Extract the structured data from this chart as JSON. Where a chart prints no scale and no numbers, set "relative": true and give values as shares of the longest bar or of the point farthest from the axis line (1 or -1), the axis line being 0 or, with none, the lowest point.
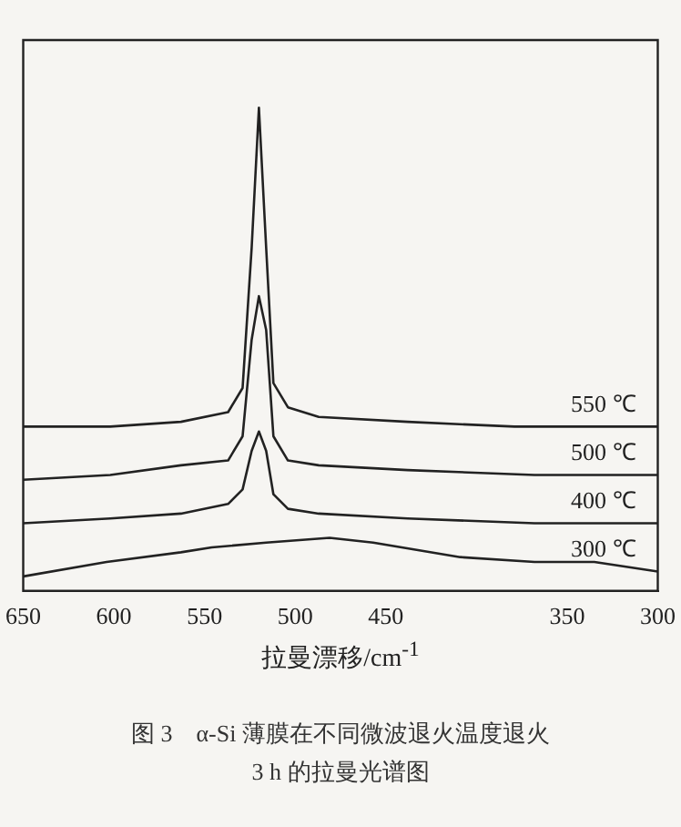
{
  "chart_data": {
    "type": "line",
    "relative": true,
    "xlabel": "拉曼漂移/cm$^{-1}$",
    "annotations": [
      "图 3　α-Si 薄膜在不同微波退火温度退火",
      "3 h 的拉曼光谱图"
    ],
    "xlim": [
      650,
      300
    ],
    "xticks": [
      650,
      600,
      550,
      500,
      450,
      350,
      300
    ],
    "tick_labels": "x",
    "grid": false,
    "legend": false,
    "marker": "none",
    "line_style": "solid",
    "series": [
      {
        "name": "550 ℃",
        "color": "#222222",
        "x": [
          650,
          602,
          563,
          537,
          529,
          524,
          520,
          516,
          512,
          504,
          487,
          438,
          379,
          300
        ],
        "values": [
          0.34,
          0.34,
          0.35,
          0.37,
          0.42,
          0.71,
          1,
          0.71,
          0.43,
          0.38,
          0.36,
          0.35,
          0.34,
          0.34
        ]
      },
      {
        "name": "500 ℃",
        "color": "#222222",
        "x": [
          650,
          602,
          563,
          537,
          529,
          524,
          520,
          516,
          512,
          504,
          487,
          438,
          368,
          300
        ],
        "values": [
          0.23,
          0.24,
          0.26,
          0.27,
          0.32,
          0.52,
          0.61,
          0.54,
          0.32,
          0.27,
          0.26,
          0.25,
          0.24,
          0.24
        ]
      },
      {
        "name": "400 ℃",
        "color": "#222222",
        "x": [
          650,
          602,
          563,
          537,
          529,
          524,
          520,
          516,
          512,
          504,
          487,
          438,
          368,
          300
        ],
        "values": [
          0.14,
          0.15,
          0.16,
          0.18,
          0.21,
          0.29,
          0.33,
          0.29,
          0.2,
          0.17,
          0.16,
          0.15,
          0.14,
          0.14
        ]
      },
      {
        "name": "300 ℃",
        "color": "#222222",
        "x": [
          650,
          604,
          563,
          546,
          516,
          481,
          457,
          409,
          368,
          335,
          300
        ],
        "values": [
          0.03,
          0.06,
          0.08,
          0.09,
          0.1,
          0.11,
          0.1,
          0.07,
          0.06,
          0.06,
          0.04
        ]
      }
    ]
  }
}
